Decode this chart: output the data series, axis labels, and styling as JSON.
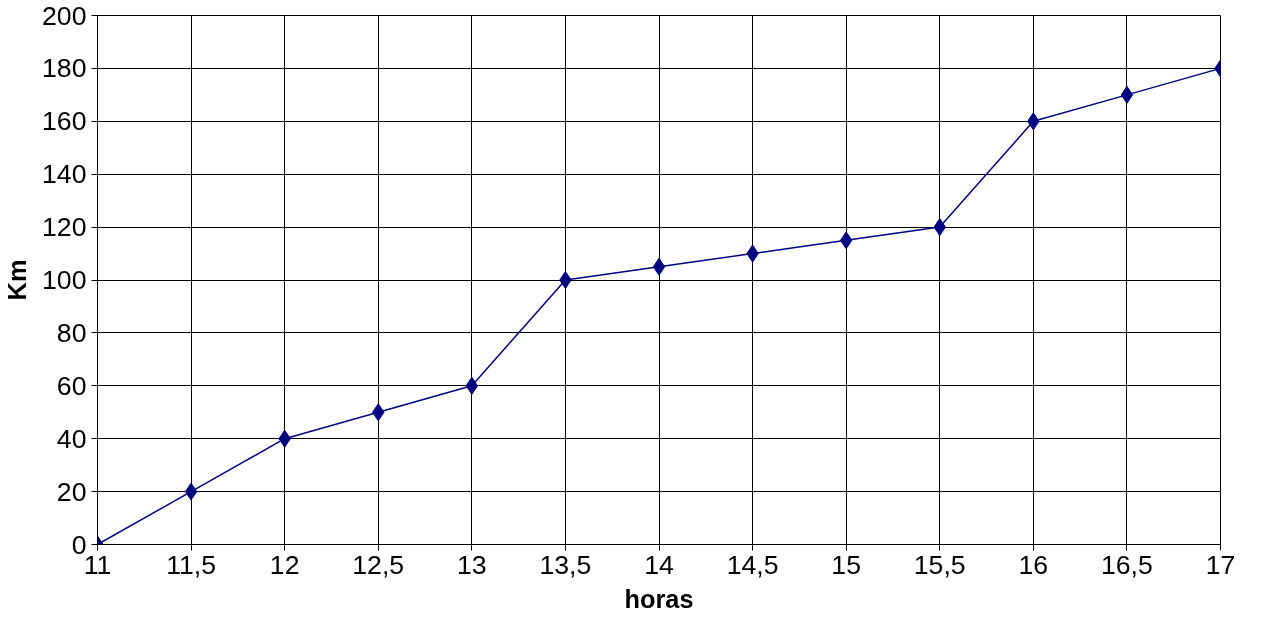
{
  "chart_data": {
    "type": "line",
    "xlabel": "horas",
    "ylabel": "Km",
    "x": [
      11,
      11.5,
      12,
      12.5,
      13,
      13.5,
      14,
      14.5,
      15,
      15.5,
      16,
      16.5,
      17
    ],
    "series": [
      {
        "color": "#000080",
        "values": [
          0,
          20,
          40,
          50,
          60,
          100,
          105,
          110,
          115,
          120,
          160,
          170,
          180
        ]
      }
    ],
    "xlim": [
      11,
      17
    ],
    "ylim": [
      0,
      200
    ],
    "xticks": [
      11,
      {
        "value": 11.5,
        "label": "11,5"
      },
      12,
      {
        "value": 12.5,
        "label": "12,5"
      },
      13,
      {
        "value": 13.5,
        "label": "13,5"
      },
      14,
      {
        "value": 14.5,
        "label": "14,5"
      },
      15,
      {
        "value": 15.5,
        "label": "15,5"
      },
      16,
      {
        "value": 16.5,
        "label": "16,5"
      },
      17
    ],
    "yticks": [
      0,
      20,
      40,
      60,
      80,
      100,
      120,
      140,
      160,
      180,
      200
    ],
    "grid": true,
    "marker": "diamond",
    "line_style": "solid"
  }
}
